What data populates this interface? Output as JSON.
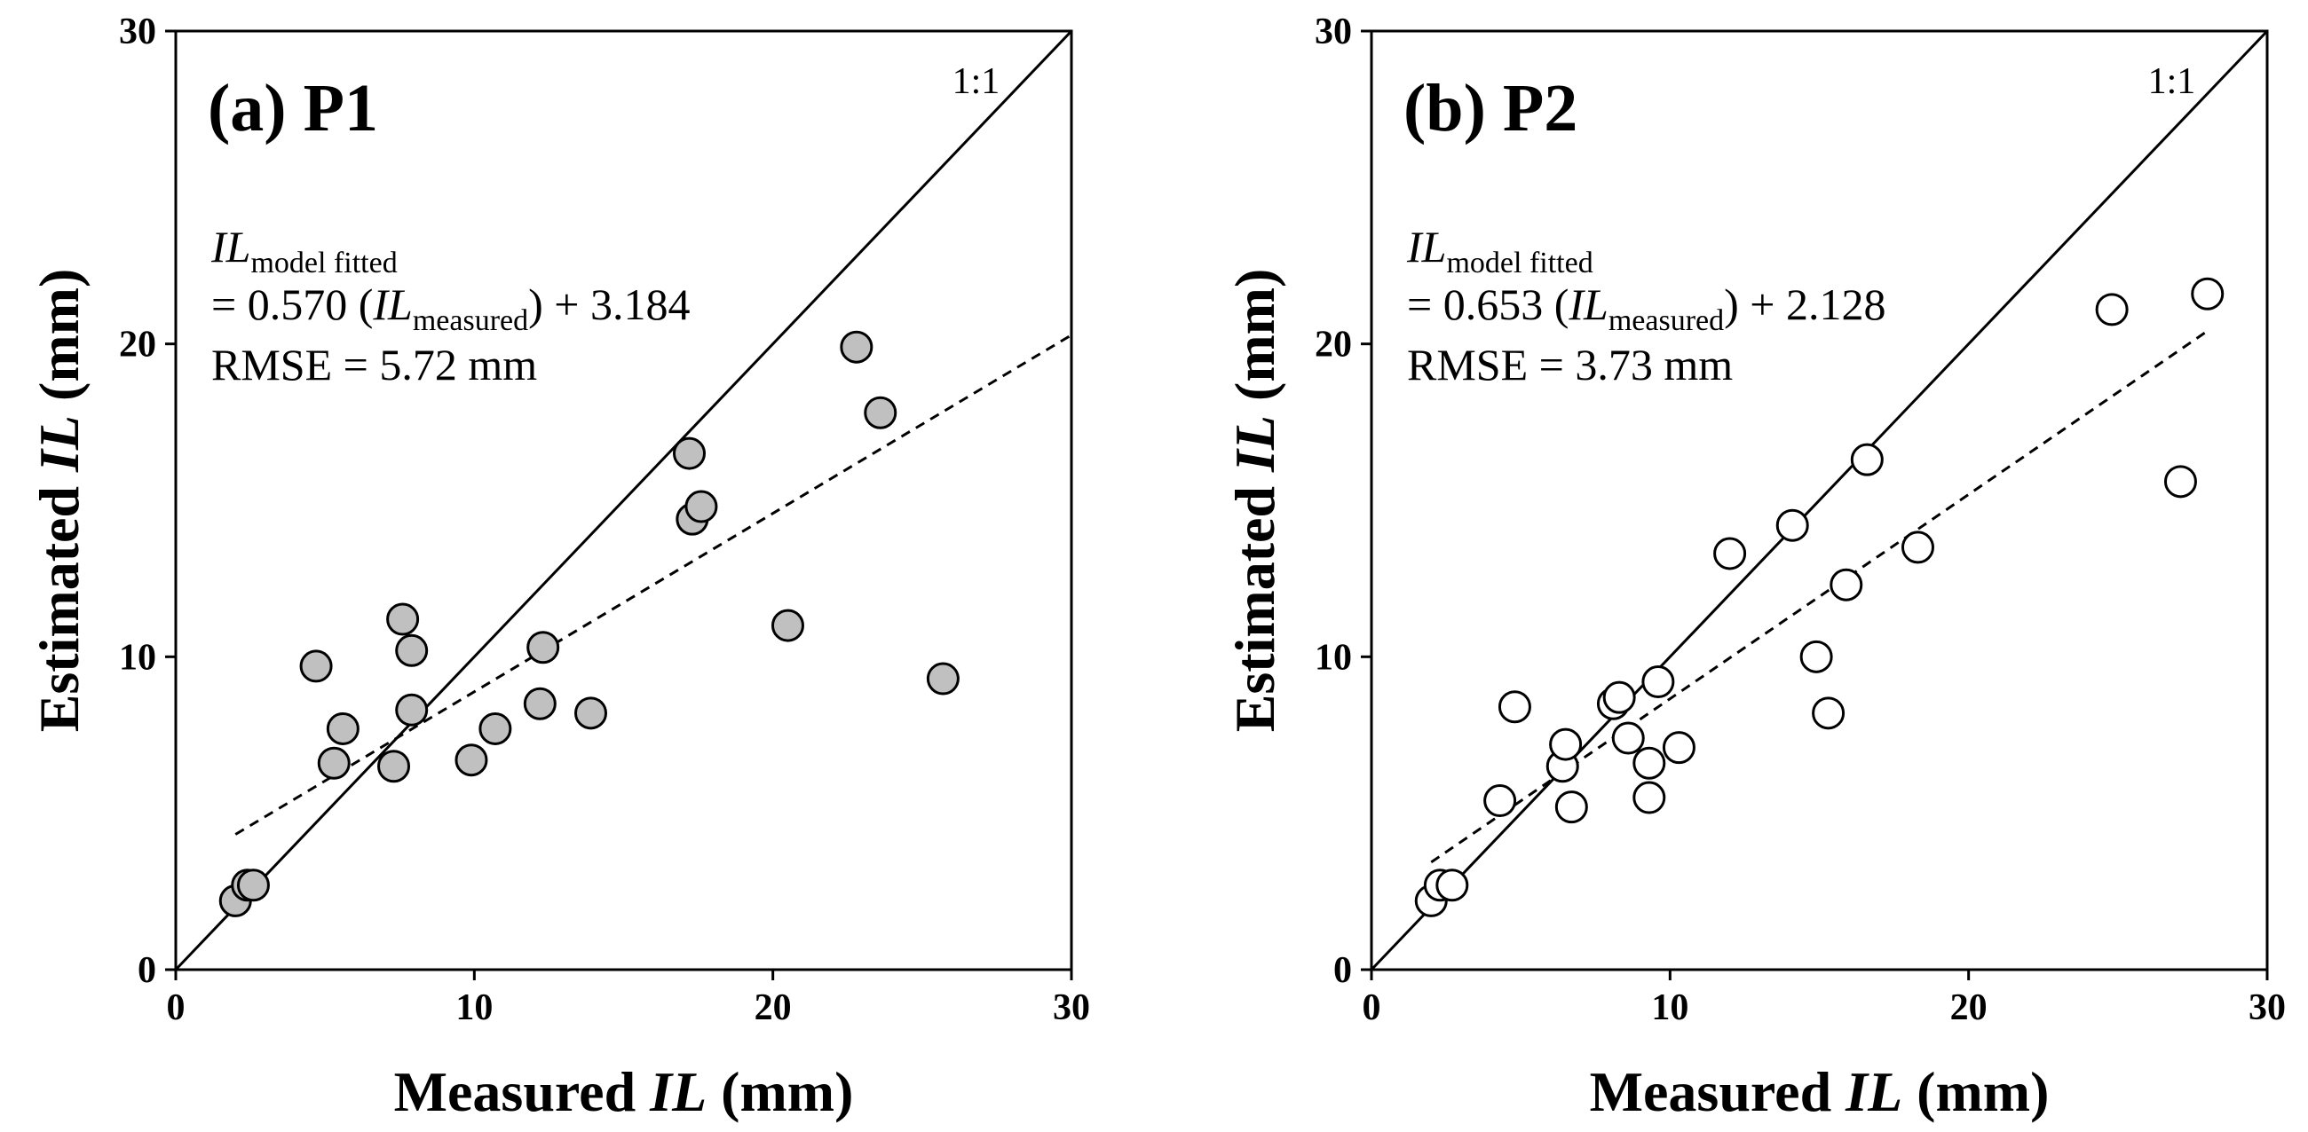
{
  "chart_data": [
    {
      "type": "scatter",
      "panel_label": "(a) P1",
      "xlabel_prefix": "Measured",
      "xlabel_var": "IL",
      "xlabel_suffix": "(mm)",
      "ylabel_prefix": "Estimated",
      "ylabel_var": "IL",
      "ylabel_suffix": "(mm)",
      "xlim": [
        0,
        30
      ],
      "ylim": [
        0,
        30
      ],
      "xticks": [
        "0",
        "10",
        "20",
        "30"
      ],
      "yticks": [
        "0",
        "10",
        "20",
        "30"
      ],
      "one_to_one_label": "1:1",
      "marker_fill": "#c0c0c0",
      "equation": {
        "lhs_var": "IL",
        "lhs_sub": "model fitted",
        "rhs_prefix": "= 0.570 (",
        "rhs_var": "IL",
        "rhs_sub": "measured",
        "rhs_suffix": ") + 3.184",
        "rmse": "RMSE = 5.72 mm"
      },
      "fit": {
        "slope": 0.57,
        "intercept": 3.184,
        "x_range": [
          2.0,
          30.0
        ]
      },
      "points": [
        {
          "x": 2.0,
          "y": 2.2
        },
        {
          "x": 2.4,
          "y": 2.7
        },
        {
          "x": 2.6,
          "y": 2.7
        },
        {
          "x": 4.7,
          "y": 9.7
        },
        {
          "x": 5.3,
          "y": 6.6
        },
        {
          "x": 5.6,
          "y": 7.7
        },
        {
          "x": 7.3,
          "y": 6.5
        },
        {
          "x": 7.6,
          "y": 11.2
        },
        {
          "x": 7.9,
          "y": 10.2
        },
        {
          "x": 7.9,
          "y": 8.3
        },
        {
          "x": 9.9,
          "y": 6.7
        },
        {
          "x": 10.7,
          "y": 7.7
        },
        {
          "x": 12.2,
          "y": 8.5
        },
        {
          "x": 12.3,
          "y": 10.3
        },
        {
          "x": 13.9,
          "y": 8.2
        },
        {
          "x": 17.2,
          "y": 16.5
        },
        {
          "x": 17.3,
          "y": 14.4
        },
        {
          "x": 17.6,
          "y": 14.8
        },
        {
          "x": 20.5,
          "y": 11.0
        },
        {
          "x": 22.8,
          "y": 19.9
        },
        {
          "x": 23.6,
          "y": 17.8
        },
        {
          "x": 25.7,
          "y": 9.3
        }
      ]
    },
    {
      "type": "scatter",
      "panel_label": "(b) P2",
      "xlabel_prefix": "Measured",
      "xlabel_var": "IL",
      "xlabel_suffix": "(mm)",
      "ylabel_prefix": "Estimated",
      "ylabel_var": "IL",
      "ylabel_suffix": "(mm)",
      "xlim": [
        0,
        30
      ],
      "ylim": [
        0,
        30
      ],
      "xticks": [
        "0",
        "10",
        "20",
        "30"
      ],
      "yticks": [
        "0",
        "10",
        "20",
        "30"
      ],
      "one_to_one_label": "1:1",
      "marker_fill": "#ffffff",
      "equation": {
        "lhs_var": "IL",
        "lhs_sub": "model fitted",
        "rhs_prefix": "= 0.653 (",
        "rhs_var": "IL",
        "rhs_sub": "measured",
        "rhs_suffix": ") + 2.128",
        "rmse": "RMSE = 3.73 mm"
      },
      "fit": {
        "slope": 0.653,
        "intercept": 2.128,
        "x_range": [
          2.0,
          28.0
        ]
      },
      "points": [
        {
          "x": 2.0,
          "y": 2.2
        },
        {
          "x": 2.3,
          "y": 2.7
        },
        {
          "x": 2.7,
          "y": 2.7
        },
        {
          "x": 4.3,
          "y": 5.4
        },
        {
          "x": 4.8,
          "y": 8.4
        },
        {
          "x": 6.4,
          "y": 6.5
        },
        {
          "x": 6.5,
          "y": 7.2
        },
        {
          "x": 6.7,
          "y": 5.2
        },
        {
          "x": 8.1,
          "y": 8.5
        },
        {
          "x": 8.3,
          "y": 8.7
        },
        {
          "x": 8.6,
          "y": 7.4
        },
        {
          "x": 9.3,
          "y": 6.6
        },
        {
          "x": 9.3,
          "y": 5.5
        },
        {
          "x": 9.6,
          "y": 9.2
        },
        {
          "x": 10.3,
          "y": 7.1
        },
        {
          "x": 12.0,
          "y": 13.3
        },
        {
          "x": 14.1,
          "y": 14.2
        },
        {
          "x": 14.9,
          "y": 10.0
        },
        {
          "x": 15.3,
          "y": 8.2
        },
        {
          "x": 15.9,
          "y": 12.3
        },
        {
          "x": 16.6,
          "y": 16.3
        },
        {
          "x": 18.3,
          "y": 13.5
        },
        {
          "x": 24.8,
          "y": 21.1
        },
        {
          "x": 27.1,
          "y": 15.6
        },
        {
          "x": 28.0,
          "y": 21.6
        }
      ]
    }
  ]
}
